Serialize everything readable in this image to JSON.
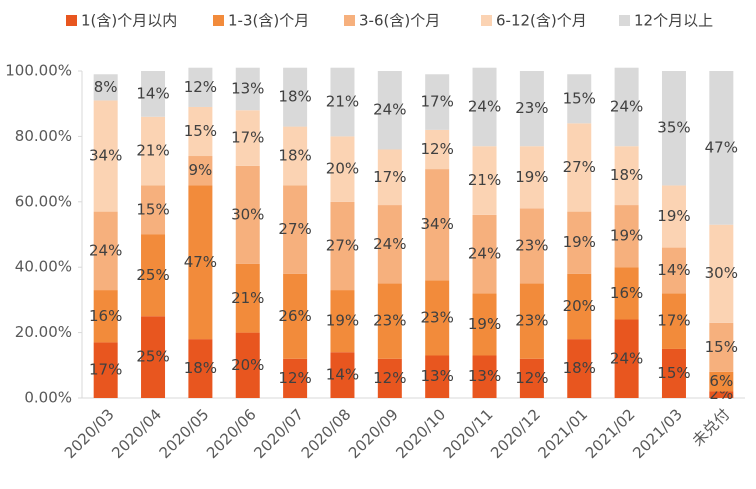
{
  "chart_data": {
    "type": "bar",
    "stacked": true,
    "categories": [
      "2020/03",
      "2020/04",
      "2020/05",
      "2020/06",
      "2020/07",
      "2020/08",
      "2020/09",
      "2020/10",
      "2020/11",
      "2020/12",
      "2021/01",
      "2021/02",
      "2021/03",
      "未兑付"
    ],
    "series": [
      {
        "name": "1(含)个月以内",
        "color": "#e8561f",
        "values": [
          17,
          25,
          18,
          20,
          12,
          14,
          12,
          13,
          13,
          12,
          18,
          24,
          15,
          2
        ],
        "value_labels": [
          "17%",
          "25%",
          "18%",
          "20%",
          "12%",
          "14%",
          "12%",
          "13%",
          "13%",
          "12%",
          "18%",
          "24%",
          "15%",
          "2%"
        ]
      },
      {
        "name": "1-3(含)个月",
        "color": "#f28b3b",
        "values": [
          16,
          25,
          47,
          21,
          26,
          19,
          23,
          23,
          19,
          23,
          20,
          16,
          17,
          6
        ],
        "value_labels": [
          "16%",
          "25%",
          "47%",
          "21%",
          "26%",
          "19%",
          "23%",
          "23%",
          "19%",
          "23%",
          "20%",
          "16%",
          "17%",
          "6%"
        ]
      },
      {
        "name": "3-6(含)个月",
        "color": "#f6b07d",
        "values": [
          24,
          15,
          9,
          30,
          27,
          27,
          24,
          34,
          24,
          23,
          19,
          19,
          14,
          15
        ],
        "value_labels": [
          "24%",
          "15%",
          "9%",
          "30%",
          "27%",
          "27%",
          "24%",
          "34%",
          "24%",
          "23%",
          "19%",
          "19%",
          "14%",
          "15%"
        ]
      },
      {
        "name": "6-12(含)个月",
        "color": "#fbd3b3",
        "values": [
          34,
          21,
          15,
          17,
          18,
          20,
          17,
          12,
          21,
          19,
          27,
          18,
          19,
          30
        ],
        "value_labels": [
          "34%",
          "21%",
          "15%",
          "17%",
          "18%",
          "20%",
          "17%",
          "12%",
          "21%",
          "19%",
          "27%",
          "18%",
          "19%",
          "30%"
        ]
      },
      {
        "name": "12个月以上",
        "color": "#d9d9d9",
        "values": [
          8,
          14,
          12,
          13,
          18,
          21,
          24,
          17,
          24,
          23,
          15,
          24,
          35,
          47
        ],
        "value_labels": [
          "8%",
          "14%",
          "12%",
          "13%",
          "18%",
          "21%",
          "24%",
          "17%",
          "24%",
          "23%",
          "15%",
          "24%",
          "35%",
          "47%"
        ]
      }
    ],
    "ylim": [
      0,
      100
    ],
    "yticks": [
      {
        "value": 0,
        "label": "0.00%"
      },
      {
        "value": 20,
        "label": "20.00%"
      },
      {
        "value": 40,
        "label": "40.00%"
      },
      {
        "value": 60,
        "label": "60.00%"
      },
      {
        "value": 80,
        "label": "80.00%"
      },
      {
        "value": 100,
        "label": "100.00%"
      }
    ],
    "legend": "top"
  }
}
